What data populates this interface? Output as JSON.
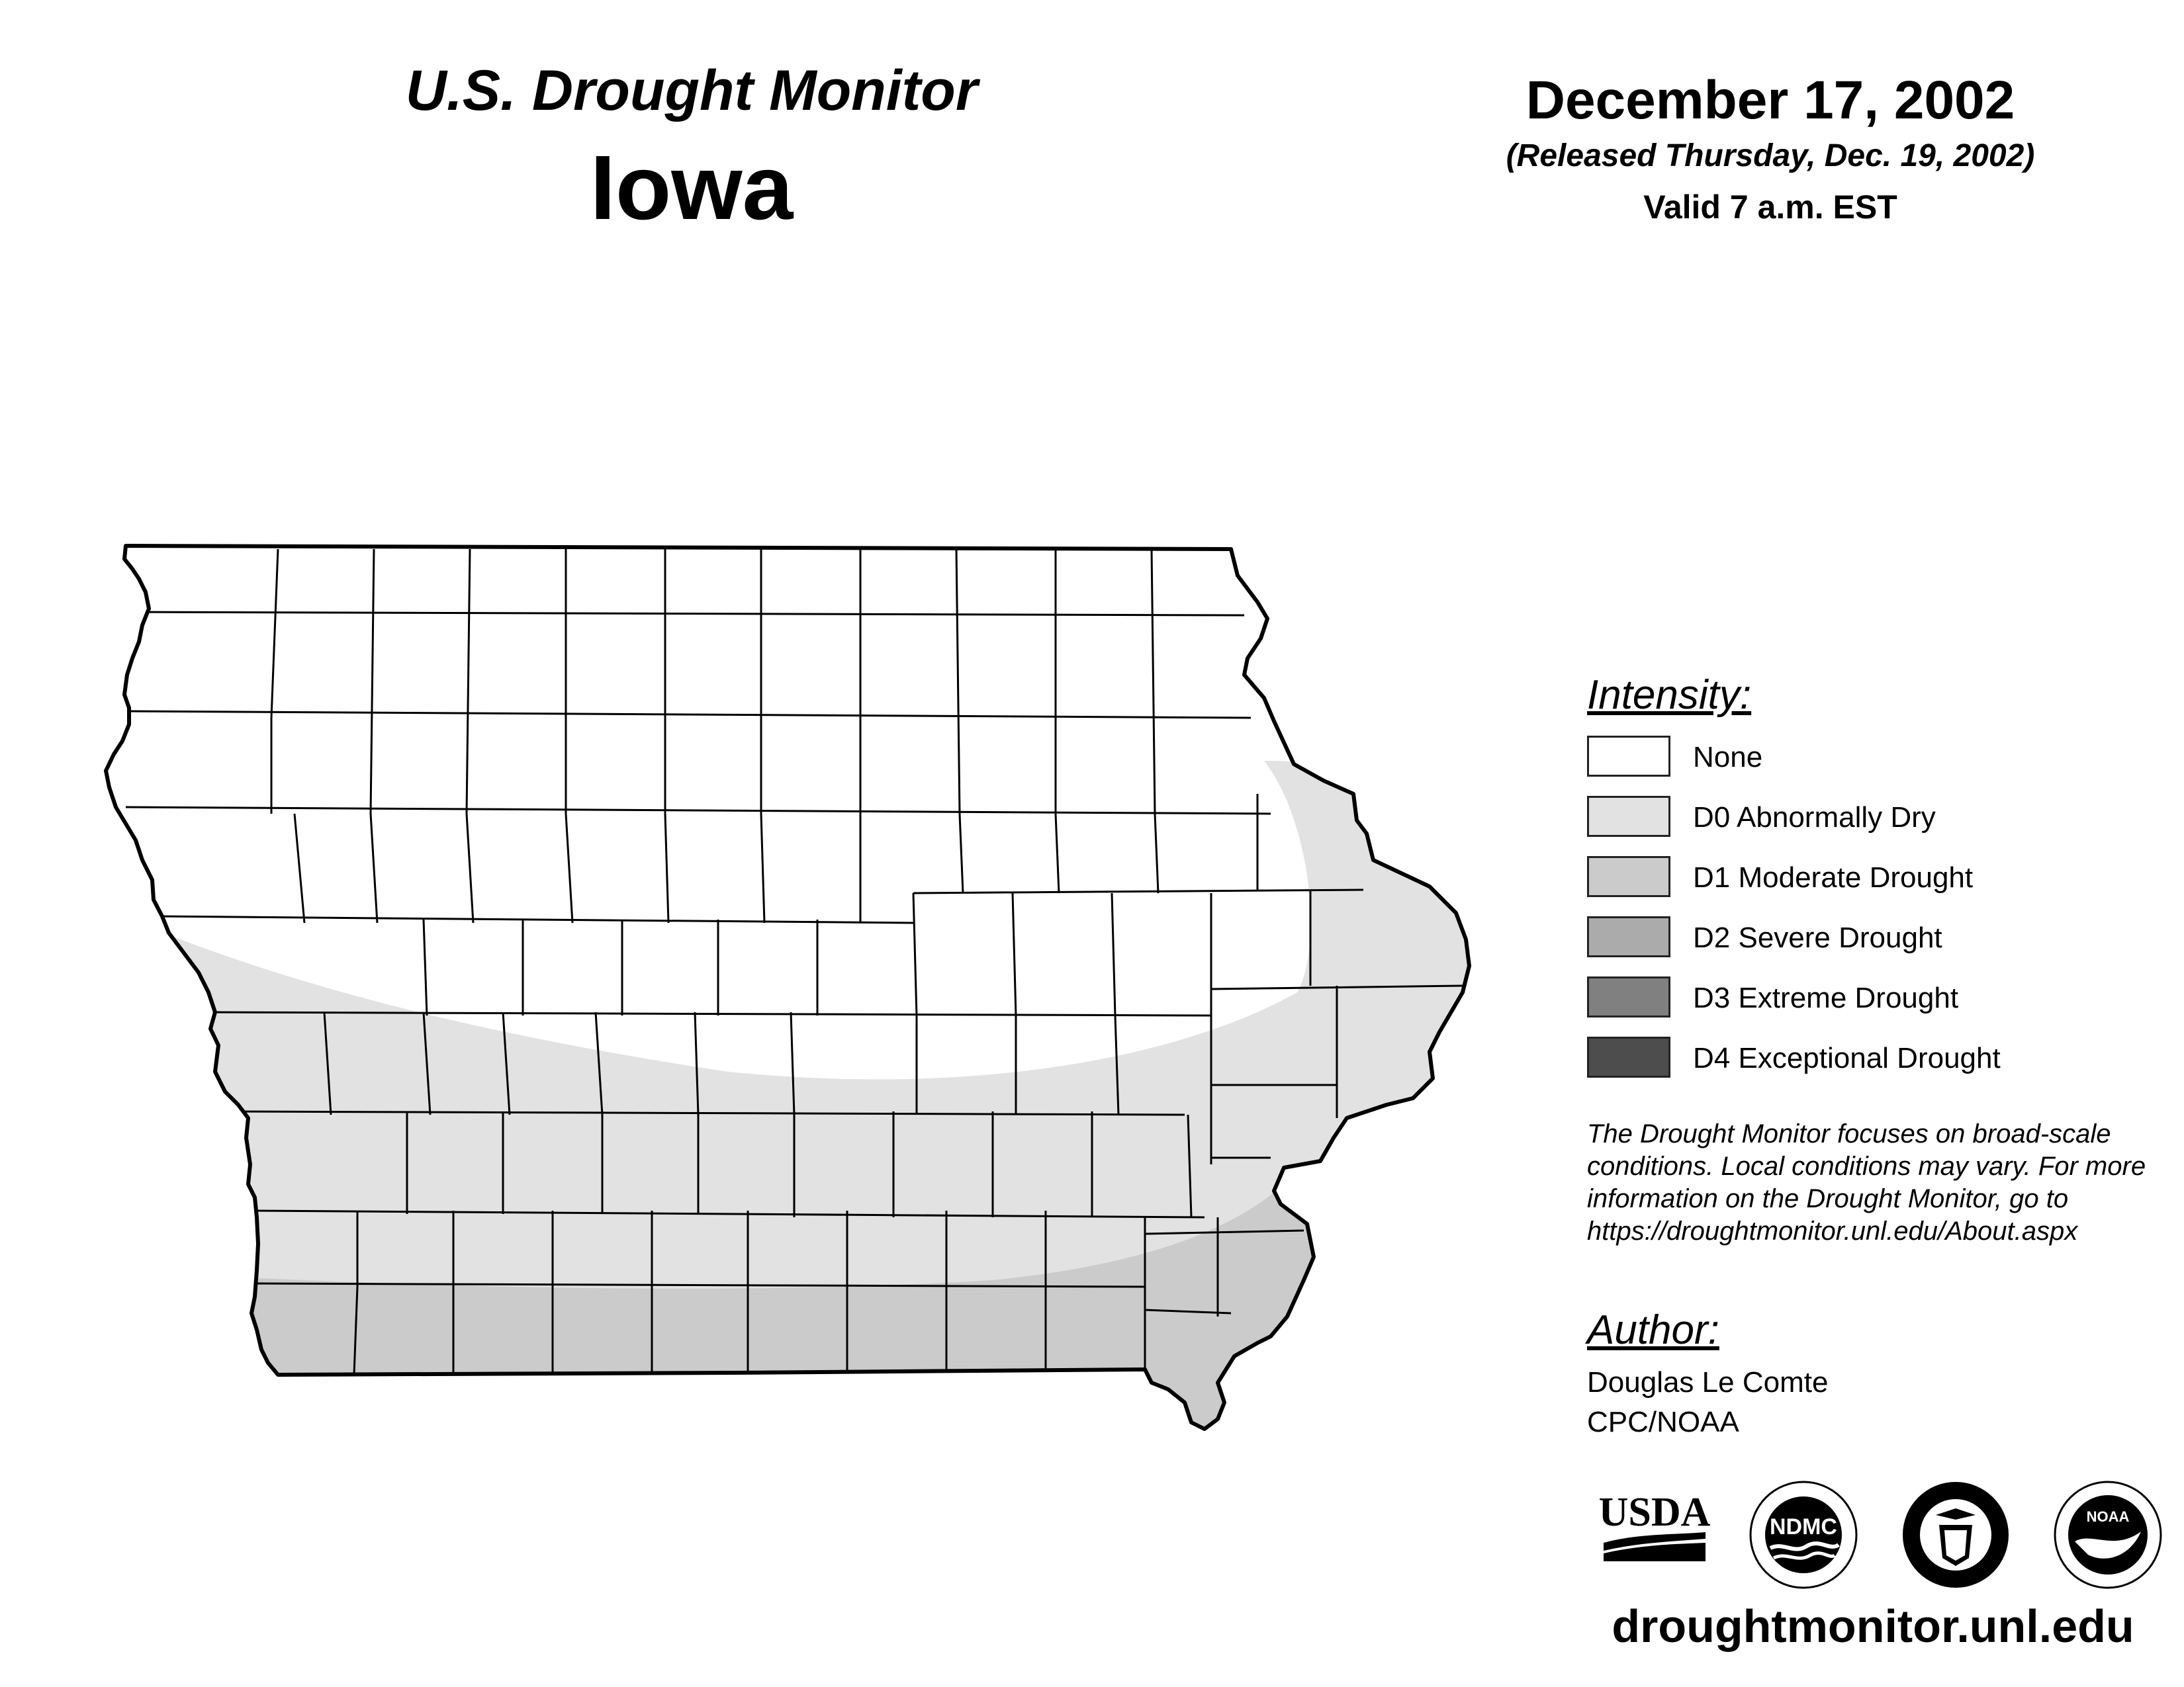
{
  "header": {
    "title": "U.S. Drought Monitor",
    "state": "Iowa",
    "date": "December 17, 2002",
    "released": "(Released Thursday, Dec. 19, 2002)",
    "valid": "Valid 7 a.m. EST"
  },
  "legend": {
    "title": "Intensity:",
    "items": [
      {
        "label": "None",
        "color": "#ffffff"
      },
      {
        "label": "D0 Abnormally Dry",
        "color": "#e2e2e2"
      },
      {
        "label": "D1 Moderate Drought",
        "color": "#cbcbcb"
      },
      {
        "label": "D2 Severe Drought",
        "color": "#ababab"
      },
      {
        "label": "D3 Extreme Drought",
        "color": "#808080"
      },
      {
        "label": "D4 Exceptional Drought",
        "color": "#4d4d4d"
      }
    ]
  },
  "note": {
    "line1": "The Drought Monitor focuses on broad-scale",
    "line2": "conditions. Local conditions may vary. For more",
    "line3": "information on the Drought Monitor, go to",
    "line4": "https://droughtmonitor.unl.edu/About.aspx"
  },
  "author": {
    "title": "Author:",
    "name": "Douglas Le Comte",
    "org": "CPC/NOAA"
  },
  "logos": {
    "usda": "USDA",
    "ndmc": "NDMC",
    "doc": "DEPARTMENT OF COMMERCE",
    "noaa": "NOAA"
  },
  "website": "droughtmonitor.unl.edu",
  "map_colors": {
    "outline": "#000000",
    "county_line": "#000000",
    "none": "#ffffff",
    "d0": "#e2e2e2",
    "d1": "#cbcbcb"
  }
}
